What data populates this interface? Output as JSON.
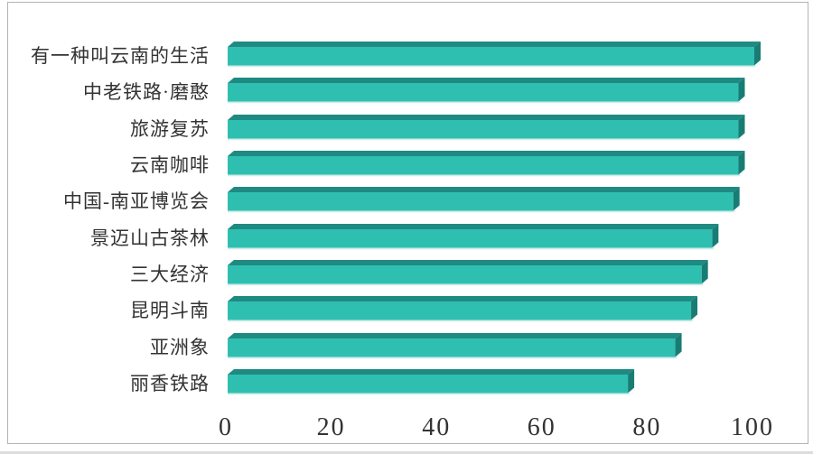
{
  "chart_data": {
    "type": "bar",
    "orientation": "horizontal",
    "style": "3d-beveled",
    "title": "",
    "xlabel": "",
    "ylabel": "",
    "grid": false,
    "legend": false,
    "xlim": [
      0,
      100
    ],
    "x_ticks": [
      "0",
      "20",
      "40",
      "60",
      "80",
      "100"
    ],
    "x_tick_values": [
      0,
      20,
      40,
      60,
      80,
      100
    ],
    "categories": [
      "有一种叫云南的生活",
      "中老铁路·磨憨",
      "旅游复苏",
      "云南咖啡",
      "中国-南亚博览会",
      "景迈山古茶林",
      "三大经济",
      "昆明斗南",
      "亚洲象",
      "丽香铁路"
    ],
    "values": [
      100,
      97,
      97,
      97,
      96,
      92,
      90,
      88,
      85,
      76
    ],
    "colors": {
      "bar_front": "#2fbfb0",
      "bar_top": "#1f8a82",
      "bar_side": "#197c74",
      "bar_light_edge": "#cfede9",
      "frame_border": "#b3b3b3",
      "text": "#333333"
    }
  }
}
